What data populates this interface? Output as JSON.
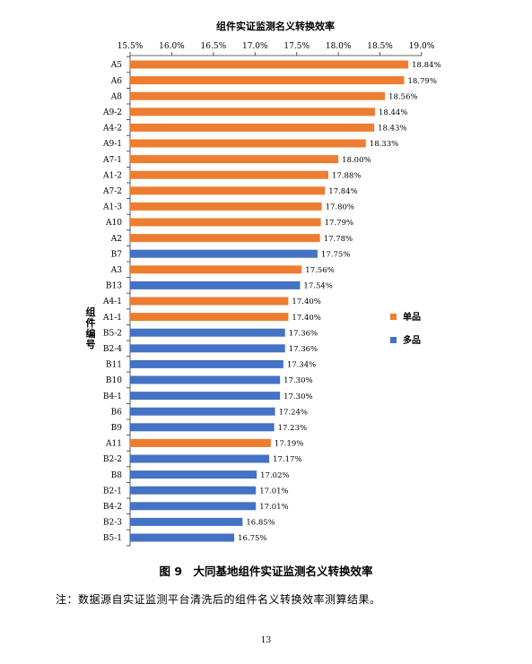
{
  "chart_data": {
    "type": "bar",
    "orientation": "horizontal",
    "title": "组件实证监测名义转换效率",
    "ylabel": "组件编号",
    "xlim": [
      15.5,
      19.0
    ],
    "x_ticks": [
      "15.5%",
      "16.0%",
      "16.5%",
      "17.0%",
      "17.5%",
      "18.0%",
      "18.5%",
      "19.0%"
    ],
    "x_axis_position": "top",
    "grid": false,
    "legend_position": "right",
    "series": [
      {
        "name": "单品",
        "color": "#ED7D31"
      },
      {
        "name": "多品",
        "color": "#4472C4"
      }
    ],
    "bars": [
      {
        "label": "A5",
        "value": 18.84,
        "value_label": "18.84%",
        "series": "单品"
      },
      {
        "label": "A6",
        "value": 18.79,
        "value_label": "18.79%",
        "series": "单品"
      },
      {
        "label": "A8",
        "value": 18.56,
        "value_label": "18.56%",
        "series": "单品"
      },
      {
        "label": "A9-2",
        "value": 18.44,
        "value_label": "18.44%",
        "series": "单品"
      },
      {
        "label": "A4-2",
        "value": 18.43,
        "value_label": "18.43%",
        "series": "单品"
      },
      {
        "label": "A9-1",
        "value": 18.33,
        "value_label": "18.33%",
        "series": "单品"
      },
      {
        "label": "A7-1",
        "value": 18.0,
        "value_label": "18.00%",
        "series": "单品"
      },
      {
        "label": "A1-2",
        "value": 17.88,
        "value_label": "17.88%",
        "series": "单品"
      },
      {
        "label": "A7-2",
        "value": 17.84,
        "value_label": "17.84%",
        "series": "单品"
      },
      {
        "label": "A1-3",
        "value": 17.8,
        "value_label": "17.80%",
        "series": "单品"
      },
      {
        "label": "A10",
        "value": 17.79,
        "value_label": "17.79%",
        "series": "单品"
      },
      {
        "label": "A2",
        "value": 17.78,
        "value_label": "17.78%",
        "series": "单品"
      },
      {
        "label": "B7",
        "value": 17.75,
        "value_label": "17.75%",
        "series": "多品"
      },
      {
        "label": "A3",
        "value": 17.56,
        "value_label": "17.56%",
        "series": "单品"
      },
      {
        "label": "B13",
        "value": 17.54,
        "value_label": "17.54%",
        "series": "多品"
      },
      {
        "label": "A4-1",
        "value": 17.4,
        "value_label": "17.40%",
        "series": "单品"
      },
      {
        "label": "A1-1",
        "value": 17.4,
        "value_label": "17.40%",
        "series": "单品"
      },
      {
        "label": "B5-2",
        "value": 17.36,
        "value_label": "17.36%",
        "series": "多品"
      },
      {
        "label": "B2-4",
        "value": 17.36,
        "value_label": "17.36%",
        "series": "多品"
      },
      {
        "label": "B11",
        "value": 17.34,
        "value_label": "17.34%",
        "series": "多品"
      },
      {
        "label": "B10",
        "value": 17.3,
        "value_label": "17.30%",
        "series": "多品"
      },
      {
        "label": "B4-1",
        "value": 17.3,
        "value_label": "17.30%",
        "series": "多品"
      },
      {
        "label": "B6",
        "value": 17.24,
        "value_label": "17.24%",
        "series": "多品"
      },
      {
        "label": "B9",
        "value": 17.23,
        "value_label": "17.23%",
        "series": "多品"
      },
      {
        "label": "A11",
        "value": 17.19,
        "value_label": "17.19%",
        "series": "单品"
      },
      {
        "label": "B2-2",
        "value": 17.17,
        "value_label": "17.17%",
        "series": "多品"
      },
      {
        "label": "B8",
        "value": 17.02,
        "value_label": "17.02%",
        "series": "多品"
      },
      {
        "label": "B2-1",
        "value": 17.01,
        "value_label": "17.01%",
        "series": "多品"
      },
      {
        "label": "B4-2",
        "value": 17.01,
        "value_label": "17.01%",
        "series": "多品"
      },
      {
        "label": "B2-3",
        "value": 16.85,
        "value_label": "16.85%",
        "series": "多品"
      },
      {
        "label": "B5-1",
        "value": 16.75,
        "value_label": "16.75%",
        "series": "多品"
      }
    ]
  },
  "figure_caption": "图 9　大同基地组件实证监测名义转换效率",
  "note": "注：数据源自实证监测平台清洗后的组件名义转换效率测算结果。",
  "page_number": "13"
}
